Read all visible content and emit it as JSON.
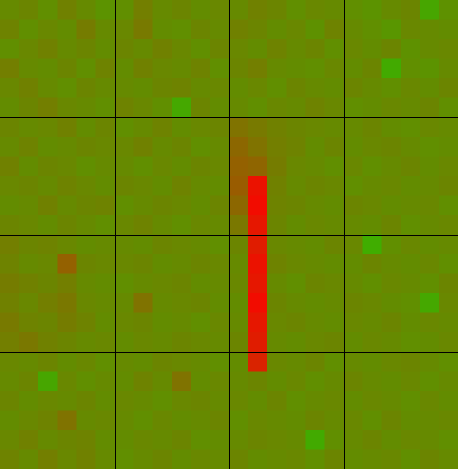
{
  "chart_data": {
    "type": "heatmap",
    "vlim": [
      0,
      100
    ],
    "colors": [
      "#00e600",
      "#ff0000"
    ],
    "blocks": 4,
    "block_line_color": "#000000",
    "values": [
      [
        40,
        42,
        38,
        44,
        40,
        36,
        38,
        45,
        40,
        42,
        39,
        41,
        40,
        44,
        42,
        38,
        41,
        40,
        38,
        36,
        40,
        42,
        28,
        37
      ],
      [
        43,
        38,
        41,
        39,
        46,
        40,
        41,
        47,
        39,
        38,
        42,
        40,
        44,
        42,
        39,
        41,
        37,
        43,
        40,
        38,
        35,
        41,
        40,
        39
      ],
      [
        38,
        41,
        44,
        40,
        42,
        39,
        42,
        40,
        44,
        41,
        38,
        42,
        41,
        39,
        43,
        40,
        42,
        38,
        41,
        39,
        42,
        37,
        40,
        41
      ],
      [
        45,
        40,
        39,
        42,
        38,
        43,
        39,
        44,
        41,
        40,
        43,
        38,
        42,
        45,
        40,
        39,
        38,
        41,
        39,
        42,
        26,
        38,
        36,
        40
      ],
      [
        41,
        44,
        40,
        38,
        42,
        40,
        40,
        39,
        42,
        43,
        40,
        41,
        39,
        41,
        38,
        42,
        40,
        39,
        42,
        40,
        38,
        41,
        39,
        42
      ],
      [
        39,
        42,
        45,
        41,
        40,
        38,
        43,
        41,
        38,
        27,
        42,
        39,
        40,
        38,
        41,
        40,
        43,
        41,
        38,
        39,
        41,
        40,
        42,
        38
      ],
      [
        42,
        40,
        41,
        44,
        39,
        42,
        38,
        40,
        43,
        39,
        41,
        42,
        50,
        47,
        44,
        42,
        41,
        40,
        40,
        42,
        39,
        38,
        41,
        40
      ],
      [
        40,
        43,
        39,
        40,
        42,
        41,
        41,
        44,
        40,
        42,
        38,
        40,
        55,
        50,
        45,
        43,
        39,
        42,
        39,
        41,
        42,
        40,
        38,
        39
      ],
      [
        44,
        39,
        42,
        41,
        38,
        40,
        40,
        38,
        41,
        39,
        42,
        41,
        58,
        56,
        46,
        41,
        40,
        38,
        41,
        38,
        40,
        42,
        39,
        41
      ],
      [
        41,
        42,
        40,
        43,
        41,
        39,
        42,
        41,
        39,
        43,
        40,
        39,
        60,
        92,
        44,
        40,
        42,
        41,
        38,
        40,
        41,
        39,
        40,
        42
      ],
      [
        39,
        40,
        44,
        40,
        42,
        43,
        38,
        40,
        42,
        41,
        39,
        42,
        55,
        95,
        43,
        42,
        40,
        39,
        42,
        41,
        39,
        40,
        41,
        38
      ],
      [
        42,
        41,
        39,
        42,
        40,
        38,
        41,
        43,
        40,
        38,
        41,
        40,
        48,
        90,
        42,
        39,
        41,
        40,
        40,
        39,
        42,
        38,
        40,
        41
      ],
      [
        45,
        42,
        43,
        41,
        39,
        40,
        40,
        39,
        42,
        41,
        40,
        38,
        42,
        88,
        41,
        40,
        39,
        42,
        41,
        25,
        38,
        41,
        39,
        40
      ],
      [
        43,
        40,
        41,
        58,
        42,
        41,
        41,
        42,
        39,
        40,
        42,
        41,
        40,
        92,
        43,
        41,
        40,
        39,
        39,
        42,
        40,
        39,
        41,
        38
      ],
      [
        46,
        44,
        42,
        45,
        40,
        39,
        38,
        40,
        41,
        42,
        39,
        40,
        41,
        90,
        40,
        38,
        42,
        41,
        40,
        38,
        41,
        40,
        38,
        42
      ],
      [
        44,
        41,
        45,
        48,
        41,
        40,
        40,
        50,
        40,
        41,
        42,
        39,
        39,
        95,
        42,
        40,
        39,
        40,
        42,
        41,
        39,
        38,
        27,
        41
      ],
      [
        47,
        43,
        42,
        46,
        43,
        39,
        41,
        42,
        39,
        40,
        38,
        41,
        40,
        90,
        41,
        42,
        40,
        39,
        41,
        40,
        42,
        39,
        41,
        40
      ],
      [
        45,
        48,
        44,
        42,
        40,
        41,
        39,
        41,
        40,
        42,
        41,
        40,
        42,
        88,
        40,
        39,
        41,
        42,
        39,
        41,
        40,
        38,
        39,
        41
      ],
      [
        41,
        40,
        42,
        39,
        41,
        38,
        40,
        39,
        42,
        41,
        40,
        38,
        39,
        85,
        41,
        40,
        42,
        38,
        40,
        39,
        41,
        42,
        40,
        38
      ],
      [
        40,
        42,
        28,
        41,
        38,
        40,
        39,
        43,
        40,
        50,
        39,
        41,
        40,
        42,
        39,
        41,
        38,
        40,
        42,
        40,
        39,
        41,
        38,
        40
      ],
      [
        42,
        39,
        41,
        40,
        42,
        39,
        41,
        40,
        38,
        41,
        42,
        40,
        41,
        39,
        42,
        38,
        40,
        41,
        39,
        41,
        40,
        38,
        41,
        39
      ],
      [
        39,
        41,
        43,
        50,
        40,
        41,
        40,
        38,
        41,
        39,
        40,
        42,
        38,
        41,
        40,
        39,
        42,
        40,
        41,
        38,
        42,
        39,
        40,
        41
      ],
      [
        41,
        44,
        40,
        42,
        43,
        39,
        39,
        41,
        40,
        42,
        38,
        39,
        40,
        42,
        41,
        40,
        26,
        38,
        40,
        42,
        39,
        41,
        40,
        38
      ],
      [
        43,
        40,
        45,
        41,
        44,
        40,
        38,
        40,
        42,
        39,
        41,
        40,
        42,
        39,
        40,
        41,
        38,
        42,
        39,
        40,
        41,
        38,
        42,
        40
      ]
    ]
  }
}
